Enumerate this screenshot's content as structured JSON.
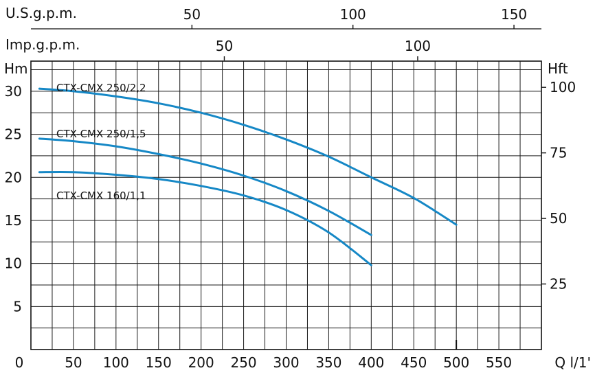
{
  "chart_data": {
    "type": "line",
    "title": "",
    "primary_x": {
      "label": "Q l/1'",
      "unit": "l/min",
      "ticks": [
        0,
        50,
        100,
        150,
        200,
        250,
        300,
        350,
        400,
        450,
        500,
        550
      ],
      "range": [
        0,
        600
      ]
    },
    "primary_y": {
      "label": "Hm",
      "ticks": [
        5,
        10,
        15,
        20,
        25,
        30
      ],
      "range": [
        0,
        33.5
      ]
    },
    "secondary_y": {
      "label": "Hft",
      "ticks": [
        25,
        50,
        75,
        100
      ],
      "range": [
        0,
        110
      ]
    },
    "top_axes": [
      {
        "label": "U.S.g.p.m.",
        "ticks": [
          50,
          100,
          150
        ],
        "liters_per_unit": 3.785
      },
      {
        "label": "Imp.g.p.m.",
        "ticks": [
          50,
          100
        ],
        "liters_per_unit": 4.546
      }
    ],
    "series": [
      {
        "name": "CTX-CMX 250/2,2",
        "x": [
          10,
          50,
          100,
          150,
          200,
          250,
          300,
          350,
          400,
          450,
          500
        ],
        "y": [
          30.3,
          30.0,
          29.4,
          28.6,
          27.5,
          26.1,
          24.4,
          22.4,
          20.0,
          17.6,
          14.5
        ]
      },
      {
        "name": "CTX-CMX 250/1,5",
        "x": [
          10,
          50,
          100,
          150,
          200,
          250,
          300,
          350,
          400
        ],
        "y": [
          24.5,
          24.2,
          23.6,
          22.7,
          21.6,
          20.2,
          18.4,
          16.1,
          13.3
        ]
      },
      {
        "name": "CTX-CMX 160/1,1",
        "x": [
          10,
          50,
          100,
          150,
          200,
          250,
          300,
          350,
          400
        ],
        "y": [
          20.6,
          20.6,
          20.3,
          19.8,
          19.0,
          17.9,
          16.2,
          13.6,
          9.8
        ]
      }
    ]
  }
}
